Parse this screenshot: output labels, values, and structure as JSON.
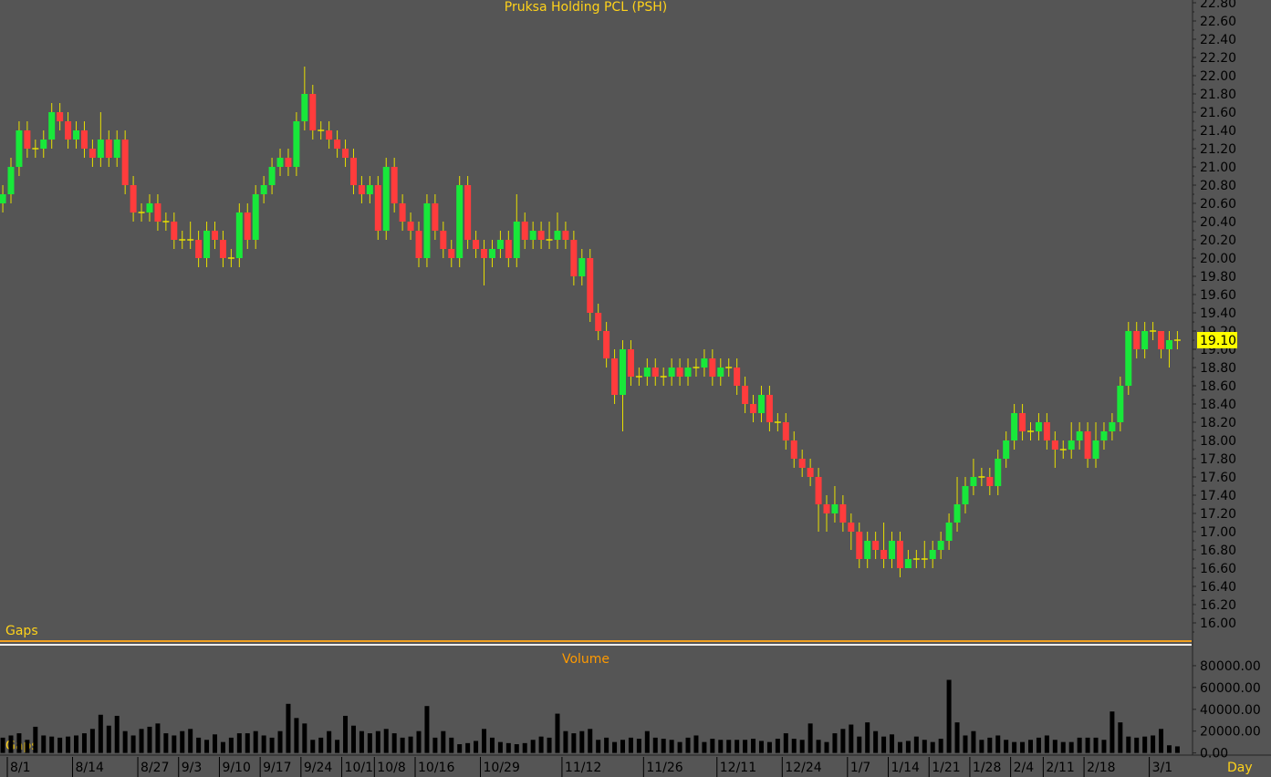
{
  "chart_data": {
    "type": "candlestick",
    "title": "Pruksa Holding PCL (PSH)",
    "volume_title": "Volume",
    "gaps_label": "Gaps",
    "period_label": "Day",
    "up_color": "#18e83a",
    "down_color": "#ff3c3c",
    "wick_color": "#e8e000",
    "categories": [
      null,
      "8/1",
      null,
      null,
      null,
      null,
      null,
      null,
      null,
      "8/14",
      null,
      null,
      null,
      null,
      null,
      null,
      null,
      "8/27",
      null,
      null,
      null,
      null,
      "9/3",
      null,
      null,
      null,
      null,
      "9/10",
      null,
      null,
      null,
      null,
      "9/17",
      null,
      null,
      null,
      null,
      "9/24",
      null,
      null,
      null,
      null,
      "10/1",
      null,
      null,
      null,
      "10/8",
      null,
      null,
      null,
      null,
      "10/16",
      null,
      null,
      null,
      null,
      null,
      null,
      null,
      "10/29",
      null,
      null,
      null,
      null,
      null,
      null,
      null,
      null,
      null,
      "11/12",
      null,
      null,
      null,
      null,
      null,
      null,
      null,
      null,
      null,
      "11/26",
      null,
      null,
      null,
      null,
      null,
      null,
      null,
      null,
      "12/11",
      null,
      null,
      null,
      null,
      null,
      null,
      null,
      "12/24",
      null,
      null,
      null,
      null,
      null,
      null,
      null,
      "1/7",
      null,
      null,
      null,
      null,
      "1/14",
      null,
      null,
      null,
      null,
      "1/21",
      null,
      null,
      null,
      null,
      "1/28",
      null,
      null,
      null,
      null,
      "2/4",
      null,
      null,
      null,
      "2/11",
      null,
      null,
      null,
      null,
      "2/18",
      null,
      null,
      null,
      null,
      null,
      null,
      null,
      "3/1",
      null,
      null,
      null
    ],
    "open": [
      20.6,
      20.7,
      21.0,
      21.4,
      21.2,
      21.2,
      21.3,
      21.6,
      21.5,
      21.3,
      21.4,
      21.2,
      21.1,
      21.3,
      21.1,
      21.3,
      20.8,
      20.5,
      20.5,
      20.6,
      20.4,
      20.4,
      20.2,
      20.2,
      20.2,
      20.0,
      20.3,
      20.2,
      20.0,
      20.0,
      20.5,
      20.2,
      20.7,
      20.8,
      21.0,
      21.1,
      21.0,
      21.5,
      21.8,
      21.4,
      21.4,
      21.3,
      21.2,
      21.1,
      20.8,
      20.7,
      20.8,
      20.3,
      21.0,
      20.6,
      20.4,
      20.3,
      20.0,
      20.6,
      20.3,
      20.1,
      20.0,
      20.8,
      20.2,
      20.1,
      20.0,
      20.1,
      20.2,
      20.0,
      20.4,
      20.2,
      20.3,
      20.2,
      20.2,
      20.3,
      20.2,
      19.8,
      20.0,
      19.4,
      19.2,
      18.9,
      18.5,
      19.0,
      18.7,
      18.7,
      18.8,
      18.7,
      18.7,
      18.8,
      18.7,
      18.8,
      18.8,
      18.9,
      18.7,
      18.8,
      18.8,
      18.6,
      18.4,
      18.3,
      18.5,
      18.2,
      18.2,
      18.0,
      17.8,
      17.7,
      17.6,
      17.3,
      17.2,
      17.3,
      17.1,
      17.0,
      16.7,
      16.9,
      16.8,
      16.7,
      16.9,
      16.6,
      16.7,
      16.7,
      16.7,
      16.8,
      16.9,
      17.1,
      17.3,
      17.5,
      17.6,
      17.6,
      17.5,
      17.8,
      18.0,
      18.3,
      18.1,
      18.1,
      18.2,
      18.0,
      17.9,
      17.9,
      18.0,
      18.1,
      17.8,
      18.0,
      18.1,
      18.2,
      18.6,
      19.2,
      19.0,
      19.2,
      19.2,
      19.0,
      19.1
    ],
    "high": [
      20.8,
      21.1,
      21.5,
      21.5,
      21.3,
      21.4,
      21.7,
      21.7,
      21.6,
      21.5,
      21.5,
      21.3,
      21.6,
      21.4,
      21.4,
      21.4,
      20.9,
      20.6,
      20.7,
      20.7,
      20.5,
      20.5,
      20.3,
      20.4,
      20.3,
      20.4,
      20.4,
      20.3,
      20.1,
      20.6,
      20.6,
      20.8,
      20.9,
      21.1,
      21.2,
      21.2,
      21.6,
      22.1,
      21.9,
      21.5,
      21.5,
      21.4,
      21.3,
      21.2,
      20.9,
      20.9,
      20.9,
      21.1,
      21.1,
      20.7,
      20.5,
      20.4,
      20.7,
      20.7,
      20.4,
      20.2,
      20.9,
      20.9,
      20.3,
      20.2,
      20.2,
      20.3,
      20.3,
      20.7,
      20.5,
      20.4,
      20.4,
      20.4,
      20.5,
      20.4,
      20.3,
      20.1,
      20.1,
      19.5,
      19.3,
      19.0,
      19.1,
      19.1,
      18.8,
      18.9,
      18.9,
      18.8,
      18.9,
      18.9,
      18.9,
      18.9,
      19.0,
      19.0,
      18.9,
      18.9,
      18.9,
      18.7,
      18.5,
      18.6,
      18.6,
      18.3,
      18.3,
      18.1,
      17.9,
      17.8,
      17.7,
      17.4,
      17.5,
      17.4,
      17.2,
      17.1,
      17.0,
      17.0,
      17.1,
      17.0,
      17.0,
      16.8,
      16.8,
      16.9,
      16.9,
      17.0,
      17.2,
      17.6,
      17.6,
      17.8,
      17.7,
      17.7,
      17.9,
      18.1,
      18.4,
      18.4,
      18.2,
      18.3,
      18.3,
      18.1,
      18.0,
      18.2,
      18.2,
      18.2,
      18.2,
      18.2,
      18.3,
      18.7,
      19.3,
      19.3,
      19.3,
      19.3,
      19.2,
      19.2,
      19.2
    ],
    "low": [
      20.5,
      20.6,
      20.9,
      21.1,
      21.1,
      21.1,
      21.2,
      21.4,
      21.2,
      21.2,
      21.1,
      21.0,
      21.0,
      21.0,
      21.0,
      20.7,
      20.4,
      20.4,
      20.4,
      20.3,
      20.3,
      20.1,
      20.1,
      20.1,
      19.9,
      19.9,
      20.1,
      19.9,
      19.9,
      19.9,
      20.1,
      20.1,
      20.6,
      20.7,
      20.9,
      20.9,
      20.9,
      21.4,
      21.3,
      21.3,
      21.2,
      21.1,
      21.0,
      20.7,
      20.6,
      20.6,
      20.2,
      20.2,
      20.5,
      20.3,
      20.2,
      19.9,
      19.9,
      20.2,
      20.0,
      19.9,
      19.9,
      20.1,
      20.0,
      19.7,
      19.9,
      20.0,
      19.9,
      19.9,
      20.1,
      20.1,
      20.1,
      20.1,
      20.1,
      20.1,
      19.7,
      19.7,
      19.3,
      19.1,
      18.8,
      18.4,
      18.1,
      18.6,
      18.6,
      18.6,
      18.6,
      18.6,
      18.6,
      18.6,
      18.6,
      18.7,
      18.7,
      18.6,
      18.6,
      18.7,
      18.5,
      18.3,
      18.2,
      18.2,
      18.1,
      18.1,
      17.9,
      17.7,
      17.6,
      17.5,
      17.0,
      17.0,
      17.1,
      17.0,
      16.8,
      16.6,
      16.6,
      16.7,
      16.6,
      16.6,
      16.5,
      16.6,
      16.6,
      16.6,
      16.6,
      16.7,
      16.8,
      17.0,
      17.2,
      17.4,
      17.5,
      17.4,
      17.4,
      17.7,
      17.9,
      18.0,
      18.0,
      18.0,
      17.9,
      17.7,
      17.8,
      17.8,
      17.9,
      17.7,
      17.7,
      17.9,
      18.0,
      18.1,
      18.5,
      18.9,
      18.9,
      19.1,
      18.9,
      18.8,
      19.0
    ],
    "close": [
      20.7,
      21.0,
      21.4,
      21.2,
      21.2,
      21.3,
      21.6,
      21.5,
      21.3,
      21.4,
      21.2,
      21.1,
      21.3,
      21.1,
      21.3,
      20.8,
      20.5,
      20.5,
      20.6,
      20.4,
      20.4,
      20.2,
      20.2,
      20.2,
      20.0,
      20.3,
      20.2,
      20.0,
      20.0,
      20.5,
      20.2,
      20.7,
      20.8,
      21.0,
      21.1,
      21.0,
      21.5,
      21.8,
      21.4,
      21.4,
      21.3,
      21.2,
      21.1,
      20.8,
      20.7,
      20.8,
      20.3,
      21.0,
      20.6,
      20.4,
      20.3,
      20.0,
      20.6,
      20.3,
      20.1,
      20.0,
      20.8,
      20.2,
      20.1,
      20.0,
      20.1,
      20.2,
      20.0,
      20.4,
      20.2,
      20.3,
      20.2,
      20.2,
      20.3,
      20.2,
      19.8,
      20.0,
      19.4,
      19.2,
      18.9,
      18.5,
      19.0,
      18.7,
      18.7,
      18.8,
      18.7,
      18.7,
      18.8,
      18.7,
      18.8,
      18.8,
      18.9,
      18.7,
      18.8,
      18.8,
      18.6,
      18.4,
      18.3,
      18.5,
      18.2,
      18.2,
      18.0,
      17.8,
      17.7,
      17.6,
      17.3,
      17.2,
      17.3,
      17.1,
      17.0,
      16.7,
      16.9,
      16.8,
      16.7,
      16.9,
      16.6,
      16.7,
      16.7,
      16.7,
      16.8,
      16.9,
      17.1,
      17.3,
      17.5,
      17.6,
      17.6,
      17.5,
      17.8,
      18.0,
      18.3,
      18.1,
      18.1,
      18.2,
      18.0,
      17.9,
      17.9,
      18.0,
      18.1,
      17.8,
      18.0,
      18.1,
      18.2,
      18.6,
      19.2,
      19.0,
      19.2,
      19.2,
      19.0,
      19.1,
      19.1
    ],
    "volume": [
      14000,
      16000,
      18000,
      12000,
      24000,
      16000,
      15000,
      14000,
      15000,
      16000,
      18000,
      22000,
      35000,
      25000,
      34000,
      20000,
      16000,
      22000,
      24000,
      27000,
      18000,
      16000,
      20000,
      22000,
      14000,
      12000,
      17000,
      10000,
      14000,
      18000,
      18000,
      20000,
      16000,
      14000,
      20000,
      45000,
      32000,
      27000,
      12000,
      14000,
      20000,
      12000,
      34000,
      25000,
      20000,
      18000,
      20000,
      22000,
      18000,
      14000,
      15000,
      20000,
      43000,
      14000,
      20000,
      14000,
      8000,
      9000,
      11000,
      22000,
      14000,
      10000,
      9000,
      8000,
      9000,
      12000,
      15000,
      14000,
      36000,
      20000,
      18000,
      20000,
      22000,
      12000,
      14000,
      10000,
      12000,
      14000,
      13000,
      20000,
      14000,
      13000,
      12000,
      10000,
      14000,
      16000,
      10000,
      13000,
      12000,
      12000,
      12000,
      12000,
      13000,
      11000,
      10000,
      13000,
      18000,
      13000,
      12000,
      27000,
      12000,
      10000,
      18000,
      22000,
      26000,
      15000,
      28000,
      20000,
      15000,
      17000,
      10000,
      11000,
      15000,
      12000,
      10000,
      13000,
      67000,
      28000,
      16000,
      20000,
      12000,
      14000,
      16000,
      12000,
      10000,
      10000,
      12000,
      14000,
      16000,
      12000,
      10000,
      10000,
      14000,
      14000,
      14000,
      12000,
      38000,
      28000,
      15000,
      14000,
      15000,
      16000,
      22000,
      7000,
      6000
    ],
    "last_price": {
      "value": 19.1,
      "label": "19.10"
    },
    "ylim": [
      15.77,
      22.83
    ],
    "yticks": [
      {
        "value": 16.0,
        "label": "16.00"
      },
      {
        "value": 16.2,
        "label": "16.20"
      },
      {
        "value": 16.4,
        "label": "16.40"
      },
      {
        "value": 16.6,
        "label": "16.60"
      },
      {
        "value": 16.8,
        "label": "16.80"
      },
      {
        "value": 17.0,
        "label": "17.00"
      },
      {
        "value": 17.2,
        "label": "17.20"
      },
      {
        "value": 17.4,
        "label": "17.40"
      },
      {
        "value": 17.6,
        "label": "17.60"
      },
      {
        "value": 17.8,
        "label": "17.80"
      },
      {
        "value": 18.0,
        "label": "18.00"
      },
      {
        "value": 18.2,
        "label": "18.20"
      },
      {
        "value": 18.4,
        "label": "18.40"
      },
      {
        "value": 18.6,
        "label": "18.60"
      },
      {
        "value": 18.8,
        "label": "18.80"
      },
      {
        "value": 19.0,
        "label": "19.00"
      },
      {
        "value": 19.2,
        "label": "19.20"
      },
      {
        "value": 19.4,
        "label": "19.40"
      },
      {
        "value": 19.6,
        "label": "19.60"
      },
      {
        "value": 19.8,
        "label": "19.80"
      },
      {
        "value": 20.0,
        "label": "20.00"
      },
      {
        "value": 20.2,
        "label": "20.20"
      },
      {
        "value": 20.4,
        "label": "20.40"
      },
      {
        "value": 20.6,
        "label": "20.60"
      },
      {
        "value": 20.8,
        "label": "20.80"
      },
      {
        "value": 21.0,
        "label": "21.00"
      },
      {
        "value": 21.2,
        "label": "21.20"
      },
      {
        "value": 21.4,
        "label": "21.40"
      },
      {
        "value": 21.6,
        "label": "21.60"
      },
      {
        "value": 21.8,
        "label": "21.80"
      },
      {
        "value": 22.0,
        "label": "22.00"
      },
      {
        "value": 22.2,
        "label": "22.20"
      },
      {
        "value": 22.4,
        "label": "22.40"
      },
      {
        "value": 22.6,
        "label": "22.60"
      },
      {
        "value": 22.8,
        "label": "22.80"
      }
    ],
    "y2lim": [
      -2000,
      95000
    ],
    "y2ticks": [
      {
        "value": 0,
        "label": "0.00"
      },
      {
        "value": 20000,
        "label": "20000.00"
      },
      {
        "value": 40000,
        "label": "40000.00"
      },
      {
        "value": 60000,
        "label": "60000.00"
      },
      {
        "value": 80000,
        "label": "80000.00"
      }
    ]
  }
}
